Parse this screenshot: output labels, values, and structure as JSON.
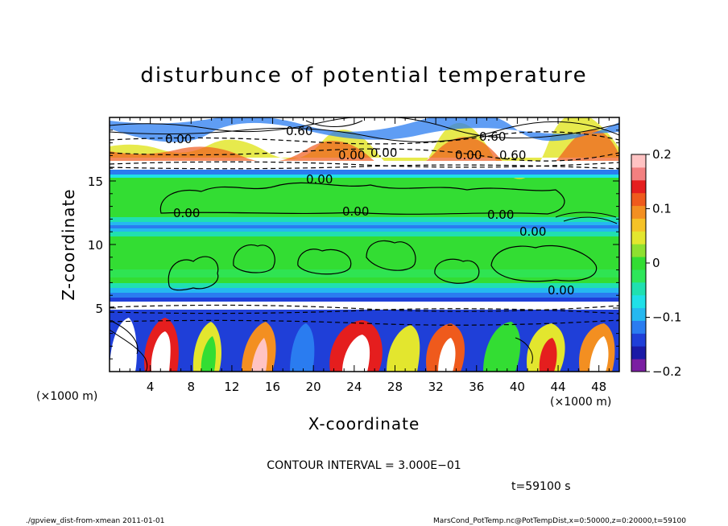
{
  "chart_data": {
    "type": "heatmap",
    "title": "disturbunce of potential temperature",
    "xlabel": "X-coordinate",
    "ylabel": "Z-coordinate",
    "x_unit_left": "(×1000 m)",
    "x_unit_right": "(×1000 m)",
    "xlim": [
      0,
      50
    ],
    "ylim": [
      0,
      20
    ],
    "x_ticks": [
      "4",
      "8",
      "12",
      "16",
      "20",
      "24",
      "28",
      "32",
      "36",
      "40",
      "44",
      "48"
    ],
    "y_ticks": [
      "5",
      "10",
      "15"
    ],
    "colorbar": {
      "ticks": [
        "0.2",
        "0.1",
        "0",
        "−0.1",
        "−0.2"
      ],
      "range": [
        -0.2,
        0.2
      ],
      "colors": [
        "#7b1fa2",
        "#1a1aa6",
        "#1f3fd8",
        "#2a7cf0",
        "#25b8f0",
        "#20e0e8",
        "#20e0b0",
        "#2ee65a",
        "#33dd33",
        "#8ee030",
        "#e3e62e",
        "#f5c227",
        "#f38f21",
        "#ef5a1c",
        "#e51e1e",
        "#f38080",
        "#ffc3c3"
      ]
    },
    "contour_labels": [
      "0.00",
      "0.00",
      "0.00",
      "0.00",
      "0.00",
      "0.00",
      "0.00",
      "0.00",
      "0.00",
      "0.60",
      "0.60",
      "0.60",
      "0.00"
    ],
    "contour_interval_text": "CONTOUR INTERVAL = 3.000E−01",
    "time_text": "t=59100 s"
  },
  "footer": {
    "left": "./gpview_dist-from-xmean   2011-01-01",
    "right": "MarsCond_PotTemp.nc@PotTempDist,x=0:50000,z=0:20000,t=59100"
  }
}
